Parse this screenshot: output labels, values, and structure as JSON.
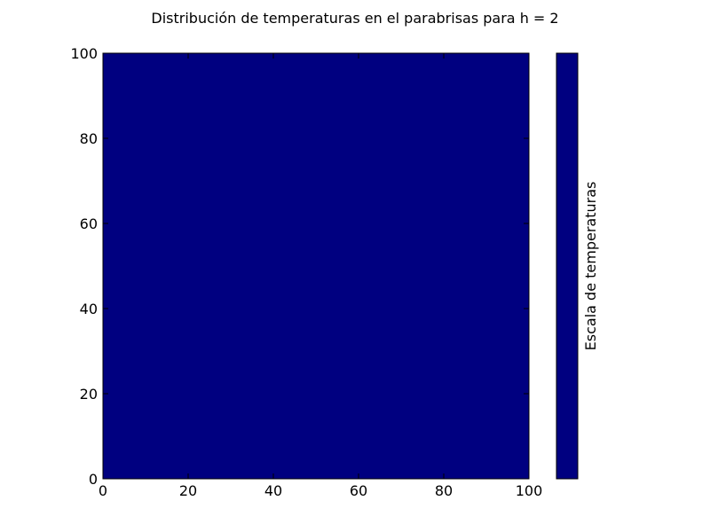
{
  "chart_data": {
    "type": "heatmap",
    "title": "Distribución de temperaturas en el parabrisas para h = 2",
    "xlabel": "",
    "ylabel": "",
    "xlim": [
      0,
      100
    ],
    "ylim": [
      0,
      100
    ],
    "x_ticks": [
      0,
      20,
      40,
      60,
      80,
      100
    ],
    "y_ticks": [
      0,
      20,
      40,
      60,
      80,
      100
    ],
    "x_tick_labels": [
      "0",
      "20",
      "40",
      "60",
      "80",
      "100"
    ],
    "y_tick_labels": [
      "0",
      "20",
      "40",
      "60",
      "80",
      "100"
    ],
    "grid": false,
    "field_value": "uniform",
    "field_color": "#000080",
    "colorbar": {
      "label": "Escala de temperaturas",
      "color": "#000080",
      "tick_labels": []
    }
  }
}
